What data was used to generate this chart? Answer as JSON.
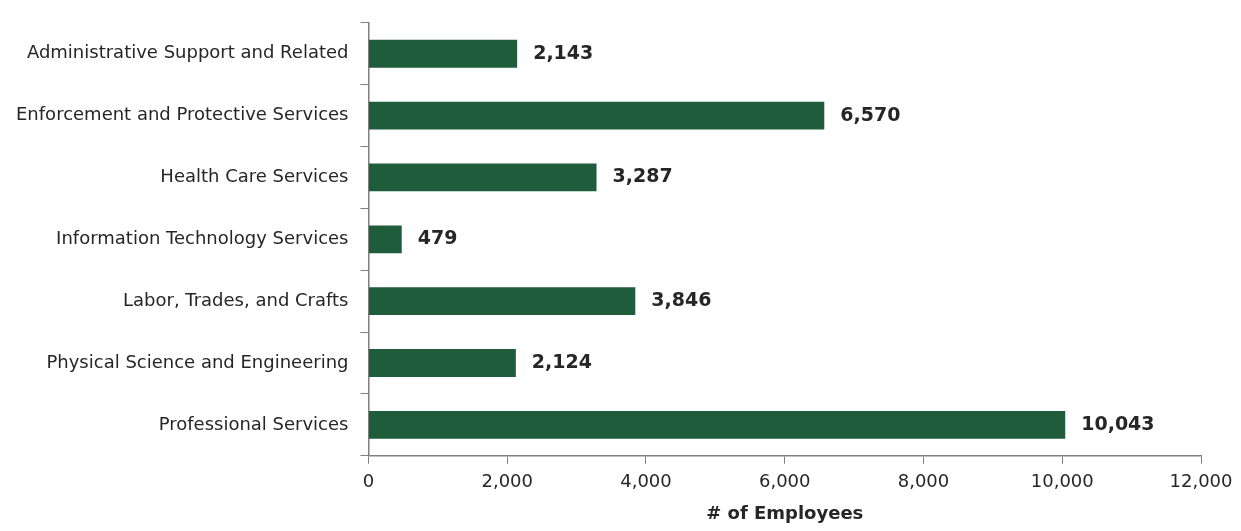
{
  "chart_data": {
    "type": "bar",
    "orientation": "horizontal",
    "xlabel": "# of Employees",
    "categories": [
      "Administrative Support and Related",
      "Enforcement and Protective Services",
      "Health Care Services",
      "Information Technology Services",
      "Labor, Trades, and Crafts",
      "Physical Science and Engineering",
      "Professional Services"
    ],
    "values": [
      2143,
      6570,
      3287,
      479,
      3846,
      2124,
      10043
    ],
    "color": "#1f5c3b",
    "xlim": [
      0,
      12000
    ],
    "xticks": [
      0,
      {
        "value": 2000,
        "label": "2,000"
      },
      {
        "value": 4000,
        "label": "4,000"
      },
      {
        "value": 6000,
        "label": "6,000"
      },
      {
        "value": 8000,
        "label": "8,000"
      },
      {
        "value": 10000,
        "label": "10,000"
      },
      {
        "value": 12000,
        "label": "12,000"
      }
    ],
    "value_labels": [
      "2,143",
      "6,570",
      "3,287",
      "479",
      "3,846",
      "2,124",
      "10,043"
    ],
    "grid": false,
    "legend": false
  }
}
